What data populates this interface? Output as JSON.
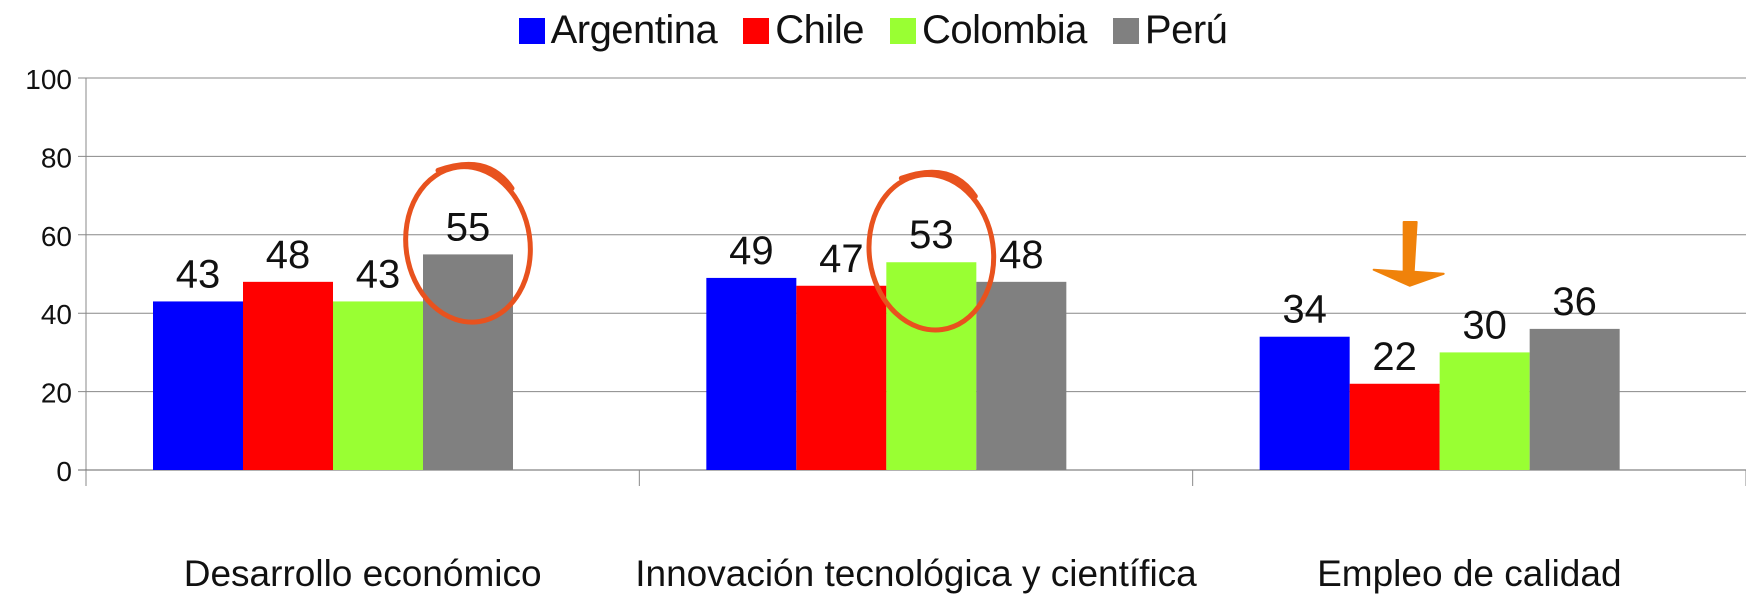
{
  "chart_data": {
    "type": "bar",
    "categories": [
      "Desarrollo económico",
      "Innovación tecnológica y científica",
      "Empleo de calidad"
    ],
    "series": [
      {
        "name": "Argentina",
        "color": "#0000FF",
        "values": [
          43,
          49,
          34
        ]
      },
      {
        "name": "Chile",
        "color": "#FF0000",
        "values": [
          48,
          47,
          22
        ]
      },
      {
        "name": "Colombia",
        "color": "#99FF33",
        "values": [
          43,
          53,
          30
        ]
      },
      {
        "name": "Perú",
        "color": "#808080",
        "values": [
          55,
          48,
          36
        ]
      }
    ],
    "ylim": [
      0,
      100
    ],
    "yticks": [
      0,
      20,
      40,
      60,
      80,
      100
    ],
    "grid": true,
    "legend_position": "top-center",
    "annotations": [
      {
        "type": "circle",
        "color": "#E8521E",
        "category": "Desarrollo económico",
        "series": "Perú"
      },
      {
        "type": "circle",
        "color": "#E8521E",
        "category": "Innovación tecnológica y científica",
        "series": "Colombia"
      },
      {
        "type": "arrow-down",
        "color": "#F0820A",
        "category": "Empleo de calidad",
        "series": "Chile"
      }
    ]
  }
}
